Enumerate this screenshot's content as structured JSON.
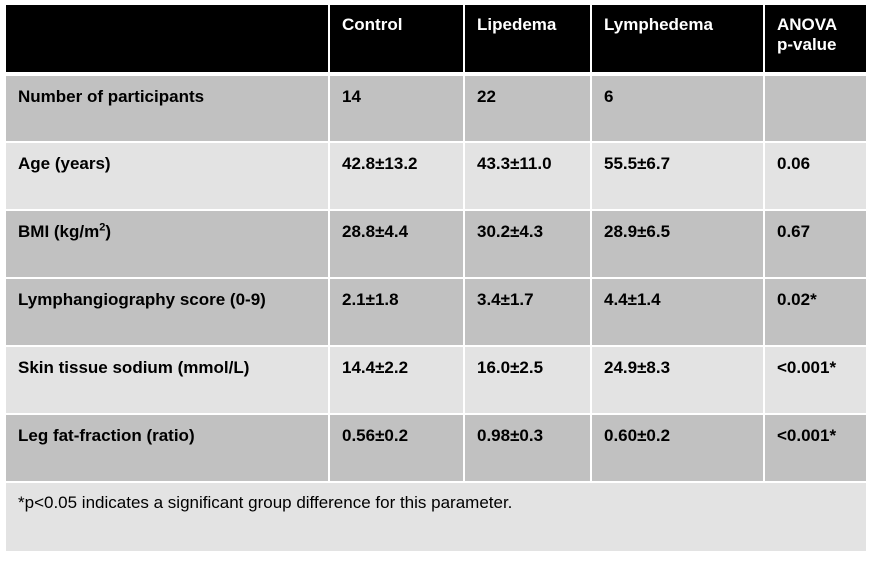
{
  "table": {
    "headers": [
      "",
      "Control",
      "Lipedema",
      "Lymphedema",
      "ANOVA p-value"
    ],
    "rows": [
      {
        "shade": "dark",
        "cells": [
          "Number of participants",
          "14",
          "22",
          "6",
          ""
        ]
      },
      {
        "shade": "light",
        "cells": [
          "Age (years)",
          "42.8±13.2",
          "43.3±11.0",
          "55.5±6.7",
          "0.06"
        ]
      },
      {
        "shade": "dark",
        "cells": [
          "BMI (kg/m²)",
          "28.8±4.4",
          "30.2±4.3",
          "28.9±6.5",
          "0.67"
        ]
      },
      {
        "shade": "dark",
        "cells": [
          "Lymphangiography score (0-9)",
          "2.1±1.8",
          "3.4±1.7",
          "4.4±1.4",
          "0.02*"
        ]
      },
      {
        "shade": "light",
        "cells": [
          "Skin tissue sodium (mmol/L)",
          "14.4±2.2",
          "16.0±2.5",
          "24.9±8.3",
          "<0.001*"
        ]
      },
      {
        "shade": "dark",
        "cells": [
          "Leg fat-fraction (ratio)",
          "0.56±0.2",
          "0.98±0.3",
          "0.60±0.2",
          "<0.001*"
        ]
      }
    ],
    "footnote": "*p<0.05 indicates a significant group difference for this parameter."
  },
  "colors": {
    "header_bg": "#000000",
    "row_dark": "#c1c1c1",
    "row_light": "#e3e3e3"
  }
}
